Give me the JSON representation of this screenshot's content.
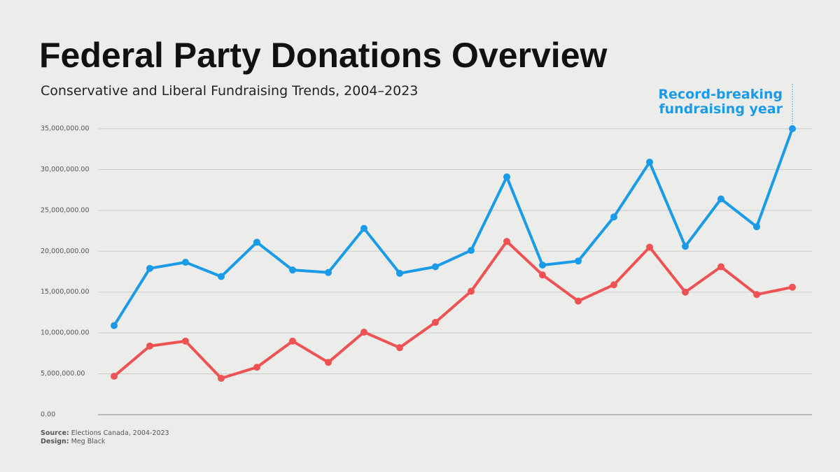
{
  "chart_data": {
    "type": "line",
    "title": "Federal Party Donations Overview",
    "subtitle": "Conservative and Liberal Fundraising Trends, 2004–2023",
    "annotation": [
      "Record-breaking",
      "fundraising year"
    ],
    "source_label": "Source:",
    "source": "Elections Canada, 2004-2023",
    "design_label": "Design:",
    "design": "Meg Black",
    "categories": [
      null,
      null,
      null,
      null,
      null,
      null,
      null,
      null,
      null,
      null,
      null,
      null,
      null,
      null,
      null,
      null,
      null,
      null,
      null,
      null
    ],
    "series": [
      {
        "color": "#1a9be8",
        "values": [
          10900000,
          17900000,
          18650000,
          16900000,
          21100000,
          17700000,
          17400000,
          22800000,
          17300000,
          18100000,
          20100000,
          29100000,
          18300000,
          18800000,
          24200000,
          30900000,
          20600000,
          26400000,
          23000000,
          35000000
        ]
      },
      {
        "color": "#ee5253",
        "values": [
          4700000,
          8400000,
          9000000,
          4450000,
          5800000,
          9000000,
          6400000,
          10100000,
          8200000,
          11300000,
          15100000,
          21200000,
          17100000,
          13900000,
          15900000,
          20500000,
          15000000,
          18100000,
          14700000,
          15600000
        ]
      }
    ],
    "ylim": [
      0,
      35000000
    ],
    "yticks": [
      {
        "value": 0,
        "label": "0.00"
      },
      {
        "value": 5000000,
        "label": "5,000,000.00"
      },
      {
        "value": 10000000,
        "label": "10,000,000.00"
      },
      {
        "value": 15000000,
        "label": "15,000,000.00"
      },
      {
        "value": 20000000,
        "label": "20,000,000.00"
      },
      {
        "value": 25000000,
        "label": "25,000,000.00"
      },
      {
        "value": 30000000,
        "label": "30,000,000.00"
      },
      {
        "value": 35000000,
        "label": "35,000,000.00"
      }
    ],
    "grid": true
  }
}
